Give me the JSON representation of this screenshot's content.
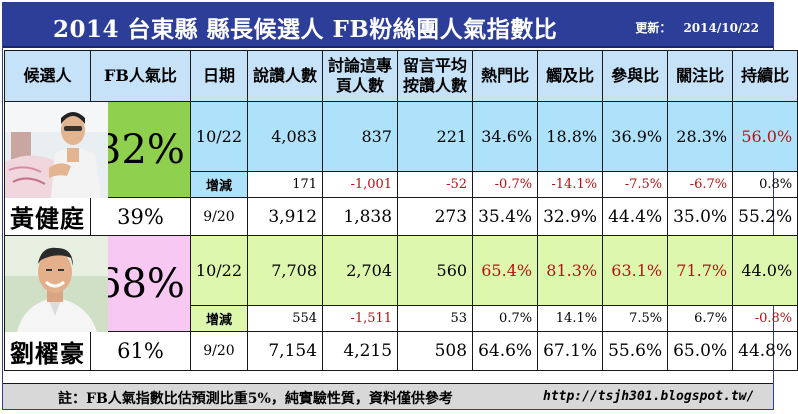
{
  "title": "2014 台東縣 縣長候選人 FB粉絲團人氣指數比",
  "update_label": "更新：",
  "update_date": "2014/10/22",
  "headers": {
    "candidate": "候選人",
    "fb_share": "FB人氣比",
    "date": "日期",
    "likes": "說讚人數",
    "talking_line1": "討論這專",
    "talking_line2": "頁人數",
    "avg_line1": "留言平均",
    "avg_line2": "按讚人數",
    "hot": "熱門比",
    "reach": "觸及比",
    "engage": "參與比",
    "attention": "關注比",
    "sustain": "持續比"
  },
  "change_label": "增減",
  "candidates": [
    {
      "name": "黃健庭",
      "share_current": "32%",
      "share_previous": "39%",
      "current": {
        "date": "10/22",
        "likes": "4,083",
        "talking": "837",
        "avg": "221",
        "hot": "34.6%",
        "reach": "18.8%",
        "engage": "36.9%",
        "attention": "28.3%",
        "sustain": "56.0%"
      },
      "change": {
        "likes": "171",
        "talking": "-1,001",
        "avg": "-52",
        "hot": "-0.7%",
        "reach": "-14.1%",
        "engage": "-7.5%",
        "attention": "-6.7%",
        "sustain": "0.8%"
      },
      "previous": {
        "date": "9/20",
        "likes": "3,912",
        "talking": "1,838",
        "avg": "273",
        "hot": "35.4%",
        "reach": "32.9%",
        "engage": "44.4%",
        "attention": "35.0%",
        "sustain": "55.2%"
      }
    },
    {
      "name": "劉櫂豪",
      "share_current": "68%",
      "share_previous": "61%",
      "current": {
        "date": "10/22",
        "likes": "7,708",
        "talking": "2,704",
        "avg": "560",
        "hot": "65.4%",
        "reach": "81.3%",
        "engage": "63.1%",
        "attention": "71.7%",
        "sustain": "44.0%"
      },
      "change": {
        "likes": "554",
        "talking": "-1,511",
        "avg": "53",
        "hot": "0.7%",
        "reach": "14.1%",
        "engage": "7.5%",
        "attention": "6.7%",
        "sustain": "-0.8%"
      },
      "previous": {
        "date": "9/20",
        "likes": "7,154",
        "talking": "4,215",
        "avg": "508",
        "hot": "64.6%",
        "reach": "67.1%",
        "engage": "55.6%",
        "attention": "65.0%",
        "sustain": "44.8%"
      }
    }
  ],
  "footer_note": "註：FB人氣指數比估預測比重5%，純實驗性質，資料僅供參考",
  "footer_url": "http://tsjh301.blogspot.tw/",
  "colors": {
    "title_bg": "#2d3e98",
    "header_bg": "#c5e2f8",
    "row_blue": "#aee2fa",
    "row_green": "#ddf7ad",
    "share_green": "#8fd14f",
    "share_pink": "#f6c8f2",
    "negative_red": "#b01515"
  },
  "chart_data": {
    "type": "table",
    "title": "2014 台東縣 縣長候選人 FB粉絲團人氣指數比",
    "columns": [
      "候選人",
      "FB人氣比",
      "日期",
      "說讚人數",
      "討論這專頁人數",
      "留言平均按讚人數",
      "熱門比",
      "觸及比",
      "參與比",
      "關注比",
      "持續比"
    ],
    "rows": [
      [
        "黃健庭",
        "32%",
        "10/22",
        4083,
        837,
        221,
        34.6,
        18.8,
        36.9,
        28.3,
        56.0
      ],
      [
        "黃健庭",
        "",
        "增減",
        171,
        -1001,
        -52,
        -0.7,
        -14.1,
        -7.5,
        -6.7,
        0.8
      ],
      [
        "黃健庭",
        "39%",
        "9/20",
        3912,
        1838,
        273,
        35.4,
        32.9,
        44.4,
        35.0,
        55.2
      ],
      [
        "劉櫂豪",
        "68%",
        "10/22",
        7708,
        2704,
        560,
        65.4,
        81.3,
        63.1,
        71.7,
        44.0
      ],
      [
        "劉櫂豪",
        "",
        "增減",
        554,
        -1511,
        53,
        0.7,
        14.1,
        7.5,
        6.7,
        -0.8
      ],
      [
        "劉櫂豪",
        "61%",
        "9/20",
        7154,
        4215,
        508,
        64.6,
        67.1,
        55.6,
        65.0,
        44.8
      ]
    ]
  }
}
